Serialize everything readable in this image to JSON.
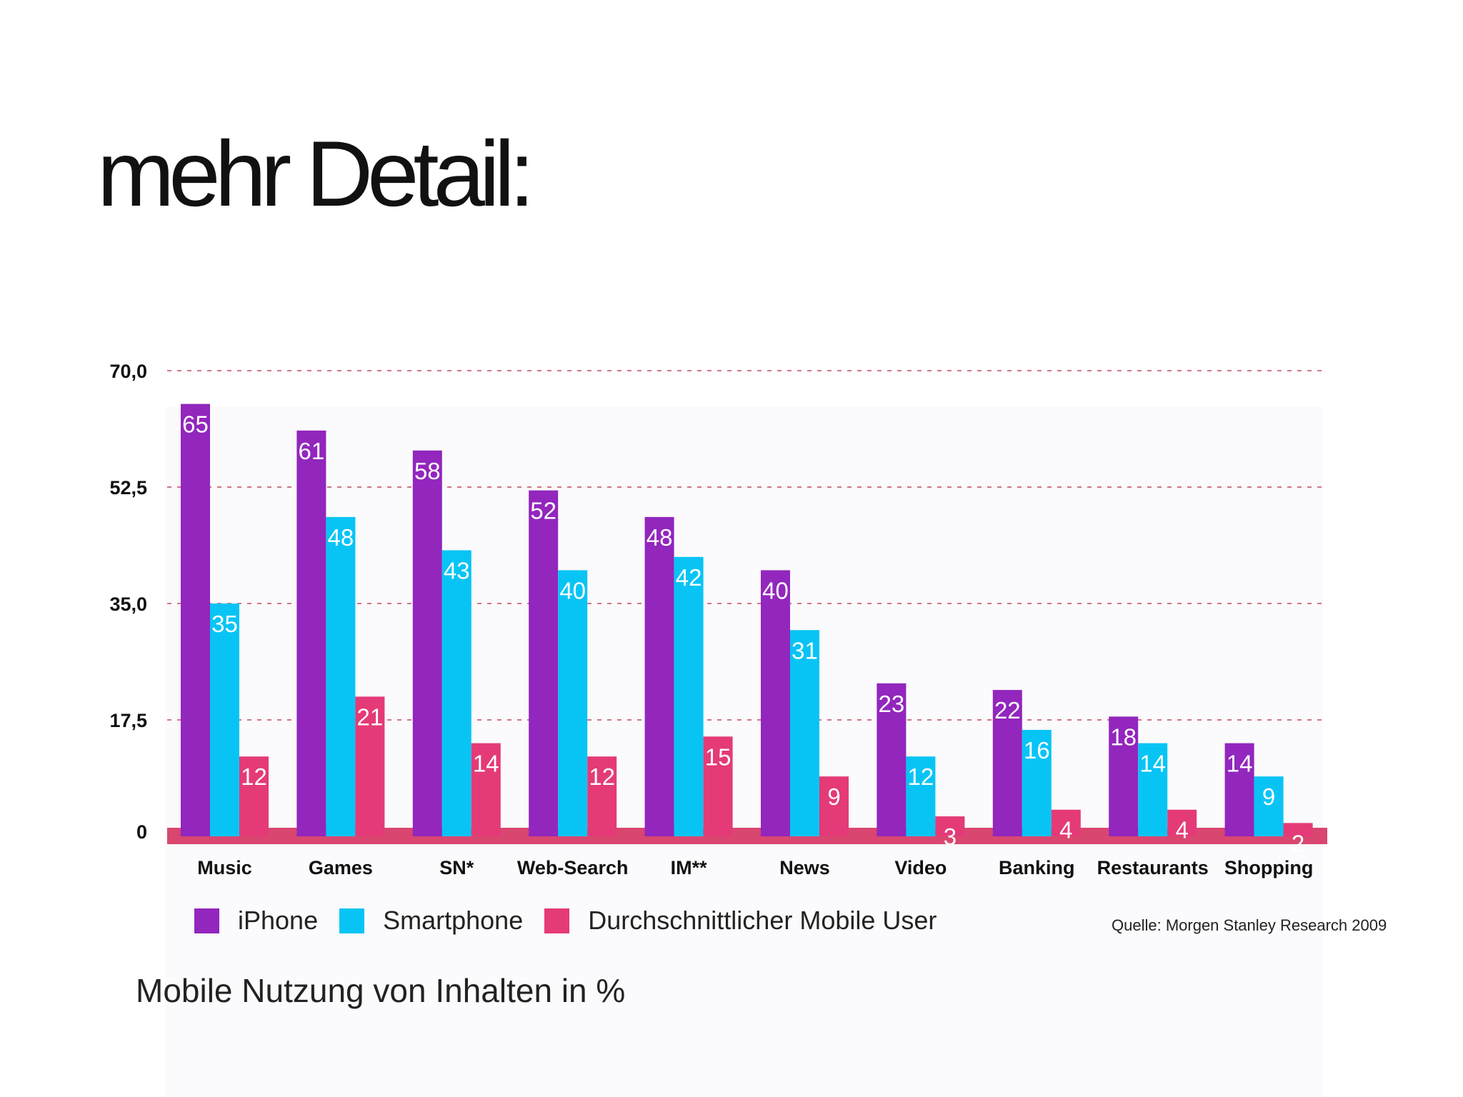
{
  "slide": {
    "title": "mehr Detail:",
    "subtitle": "Mobile Nutzung von Inhalten in %",
    "source": "Quelle: Morgen Stanley Research 2009"
  },
  "chart_data": {
    "type": "bar",
    "title": "",
    "xlabel": "",
    "ylabel": "",
    "ylim": [
      0,
      70
    ],
    "yticks": [
      "0",
      "17,5",
      "35,0",
      "52,5",
      "70,0"
    ],
    "grid": "dashed horizontal",
    "legend_position": "bottom-left",
    "categories": [
      "Music",
      "Games",
      "SN*",
      "Web-Search",
      "IM**",
      "News",
      "Video",
      "Banking",
      "Restaurants",
      "Shopping"
    ],
    "series": [
      {
        "name": "iPhone",
        "color": "#9226bd",
        "values": [
          65,
          61,
          58,
          52,
          48,
          40,
          23,
          22,
          18,
          14
        ]
      },
      {
        "name": "Smartphone",
        "color": "#08c4f5",
        "values": [
          35,
          48,
          43,
          40,
          42,
          31,
          12,
          16,
          14,
          9
        ]
      },
      {
        "name": "Durchschnittlicher Mobile User",
        "color": "#e43a78",
        "values": [
          12,
          21,
          14,
          12,
          15,
          9,
          3,
          4,
          4,
          2
        ]
      }
    ],
    "baseline_color": "#d9466f",
    "grid_color": "#c24a5e"
  }
}
